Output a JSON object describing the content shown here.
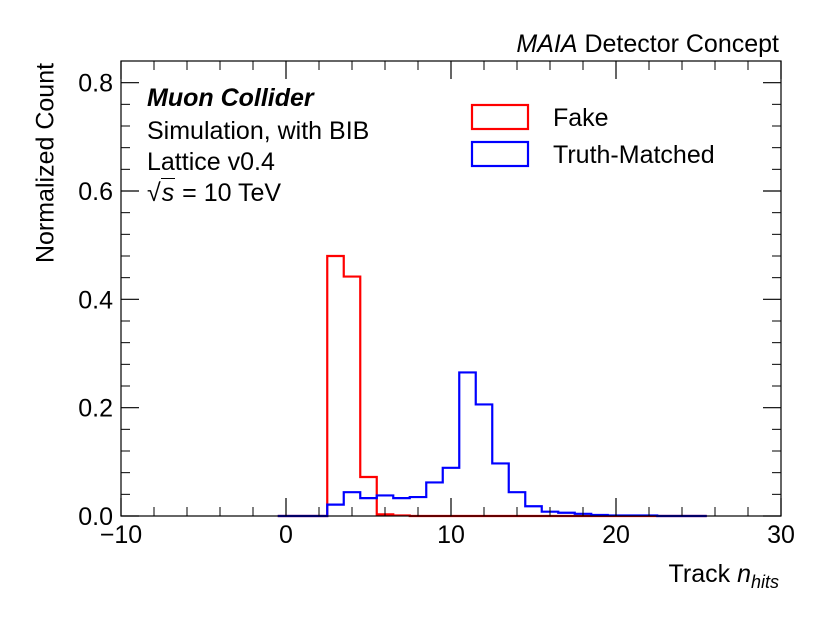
{
  "chart_data": {
    "type": "histogram",
    "title_italic": "MAIA",
    "title_rest": "Detector Concept",
    "xlabel_main": "Track ",
    "xlabel_var": "n",
    "xlabel_sub": "hits",
    "ylabel": "Normalized Count",
    "xlim": [
      -10,
      30
    ],
    "ylim": [
      0,
      0.84
    ],
    "x_ticks": [
      -10,
      0,
      10,
      20,
      30
    ],
    "x_tick_labels": [
      "−10",
      "0",
      "10",
      "20",
      "30"
    ],
    "y_ticks": [
      0.0,
      0.2,
      0.4,
      0.6,
      0.8
    ],
    "y_tick_labels": [
      "0.0",
      "0.2",
      "0.4",
      "0.6",
      "0.8"
    ],
    "bin_edges": [
      -0.5,
      0.5,
      1.5,
      2.5,
      3.5,
      4.5,
      5.5,
      6.5,
      7.5,
      8.5,
      9.5,
      10.5,
      11.5,
      12.5,
      13.5,
      14.5,
      15.5,
      16.5,
      17.5,
      18.5,
      19.5,
      20.5,
      21.5,
      22.5,
      23.5,
      24.5,
      25.5
    ],
    "series": [
      {
        "name": "Fake",
        "color": "#ff0000",
        "values": [
          0,
          0,
          0,
          0.48,
          0.442,
          0.072,
          0.003,
          0.001,
          0,
          0,
          0,
          0,
          0,
          0,
          0,
          0,
          0,
          0,
          0,
          0,
          0,
          0,
          0,
          0,
          0,
          0
        ]
      },
      {
        "name": "Truth-Matched",
        "color": "#0000ff",
        "values": [
          0,
          0,
          0,
          0.021,
          0.044,
          0.033,
          0.038,
          0.033,
          0.035,
          0.062,
          0.089,
          0.265,
          0.206,
          0.097,
          0.044,
          0.018,
          0.008,
          0.006,
          0.004,
          0.002,
          0.001,
          0.001,
          0.001,
          0,
          0,
          0
        ]
      }
    ],
    "legend": {
      "placement": "top-right",
      "entries": [
        "Fake",
        "Truth-Matched"
      ]
    },
    "annotations": {
      "experiment": "Muon Collider",
      "line1": "Simulation, with BIB",
      "line2": "Lattice v0.4",
      "energy_symbol": "s",
      "energy_value": " = 10 TeV"
    }
  }
}
